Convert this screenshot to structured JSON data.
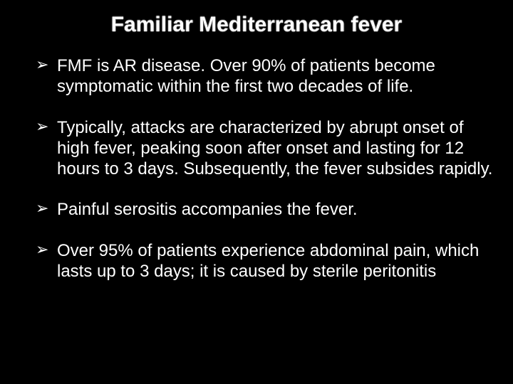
{
  "slide": {
    "title": "Familiar Mediterranean fever",
    "bullets": [
      "FMF is AR disease. Over 90% of patients become symptomatic within the first two decades of life.",
      "Typically, attacks are characterized by abrupt onset of high fever, peaking soon after onset and lasting for 12 hours to 3 days. Subsequently, the fever subsides rapidly.",
      "Painful serositis accompanies the fever.",
      "Over 95% of patients experience abdominal pain, which lasts up to 3 days; it is caused by sterile peritonitis"
    ],
    "colors": {
      "background": "#000000",
      "text": "#ffffff",
      "title": "#ffffff"
    },
    "typography": {
      "title_fontsize": 30,
      "body_fontsize": 24,
      "font_family": "Arial"
    },
    "bullet_marker": "➢"
  }
}
